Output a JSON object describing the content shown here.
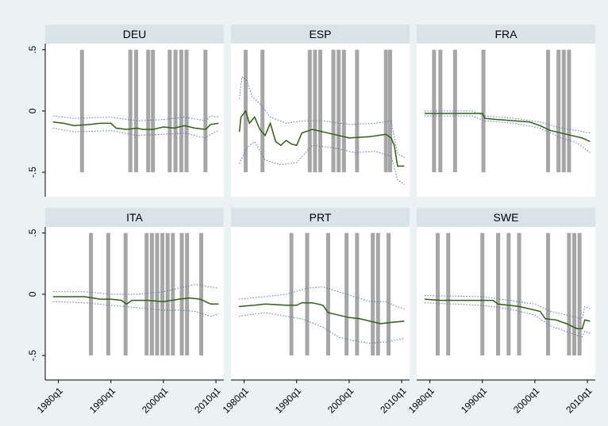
{
  "chart_data": {
    "type": "line",
    "layout": "3x2 small multiples",
    "x_ticks": [
      "1980q1",
      "1990q1",
      "2000q1",
      "2010q1"
    ],
    "y_ticks": [
      ".5",
      "0",
      "-.5"
    ],
    "ylim": [
      -0.7,
      0.55
    ],
    "xlim": [
      1977.5,
      2011.5
    ],
    "colors": {
      "estimate": "#2f5f18",
      "band": "#5b74b8",
      "shade": "#a6a6a6",
      "strip": "#d9e4e9",
      "background": "#eaf2f3"
    },
    "panels": [
      {
        "name": "DEU",
        "shaded_periods": [
          1984.5,
          1993.7,
          1994.8,
          1997.1,
          1998.0,
          2001.2,
          2002.3,
          2003.4,
          2004.4,
          2008.0
        ],
        "estimate": [
          [
            1979.0,
            -0.09
          ],
          [
            1981.0,
            -0.1
          ],
          [
            1983.0,
            -0.12
          ],
          [
            1986.0,
            -0.11
          ],
          [
            1988.0,
            -0.1
          ],
          [
            1990.0,
            -0.1
          ],
          [
            1991.0,
            -0.14
          ],
          [
            1993.0,
            -0.15
          ],
          [
            1995.0,
            -0.14
          ],
          [
            1996.0,
            -0.15
          ],
          [
            1998.0,
            -0.15
          ],
          [
            2000.0,
            -0.13
          ],
          [
            2002.0,
            -0.14
          ],
          [
            2004.0,
            -0.12
          ],
          [
            2006.0,
            -0.14
          ],
          [
            2008.0,
            -0.15
          ],
          [
            2009.0,
            -0.11
          ],
          [
            2010.5,
            -0.1
          ]
        ],
        "upper": [
          [
            1979.0,
            -0.04
          ],
          [
            1983.0,
            -0.06
          ],
          [
            1990.0,
            -0.05
          ],
          [
            1995.0,
            -0.08
          ],
          [
            2000.0,
            -0.07
          ],
          [
            2004.0,
            -0.05
          ],
          [
            2008.0,
            -0.08
          ],
          [
            2009.0,
            -0.04
          ],
          [
            2010.5,
            -0.05
          ]
        ],
        "lower": [
          [
            1979.0,
            -0.14
          ],
          [
            1983.0,
            -0.17
          ],
          [
            1990.0,
            -0.16
          ],
          [
            1995.0,
            -0.2
          ],
          [
            2000.0,
            -0.19
          ],
          [
            2004.0,
            -0.18
          ],
          [
            2008.0,
            -0.22
          ],
          [
            2009.0,
            -0.19
          ],
          [
            2010.5,
            -0.16
          ]
        ]
      },
      {
        "name": "ESP",
        "shaded_periods": [
          1980.3,
          1983.5,
          1992.5,
          1993.5,
          1994.5,
          1997.0,
          1998.0,
          1999.0,
          2001.5,
          2007.0,
          2007.8
        ],
        "estimate": [
          [
            1979.1,
            -0.17
          ],
          [
            1979.4,
            -0.05
          ],
          [
            1980.3,
            0.0
          ],
          [
            1981.0,
            -0.1
          ],
          [
            1982.0,
            -0.05
          ],
          [
            1983.0,
            -0.15
          ],
          [
            1984.0,
            -0.2
          ],
          [
            1985.0,
            -0.1
          ],
          [
            1986.0,
            -0.25
          ],
          [
            1987.0,
            -0.28
          ],
          [
            1988.0,
            -0.24
          ],
          [
            1989.0,
            -0.27
          ],
          [
            1990.0,
            -0.28
          ],
          [
            1991.0,
            -0.18
          ],
          [
            1993.0,
            -0.15
          ],
          [
            1996.0,
            -0.18
          ],
          [
            2000.0,
            -0.22
          ],
          [
            2004.0,
            -0.21
          ],
          [
            2007.0,
            -0.19
          ],
          [
            2008.0,
            -0.22
          ],
          [
            2008.6,
            -0.28
          ],
          [
            2009.2,
            -0.45
          ],
          [
            2010.5,
            -0.45
          ]
        ],
        "upper": [
          [
            1979.1,
            0.1
          ],
          [
            1979.6,
            0.28
          ],
          [
            1980.5,
            0.25
          ],
          [
            1981.5,
            0.12
          ],
          [
            1983.0,
            0.06
          ],
          [
            1985.0,
            -0.05
          ],
          [
            1988.0,
            -0.1
          ],
          [
            1991.0,
            -0.08
          ],
          [
            1995.0,
            -0.08
          ],
          [
            2000.0,
            -0.11
          ],
          [
            2005.0,
            -0.1
          ],
          [
            2008.0,
            -0.08
          ],
          [
            2009.2,
            -0.35
          ],
          [
            2010.5,
            -0.38
          ]
        ],
        "lower": [
          [
            1979.1,
            -0.43
          ],
          [
            1980.5,
            -0.3
          ],
          [
            1982.0,
            -0.25
          ],
          [
            1984.0,
            -0.4
          ],
          [
            1987.0,
            -0.44
          ],
          [
            1990.0,
            -0.42
          ],
          [
            1993.0,
            -0.28
          ],
          [
            1997.0,
            -0.3
          ],
          [
            2001.0,
            -0.34
          ],
          [
            2005.0,
            -0.33
          ],
          [
            2008.0,
            -0.37
          ],
          [
            2009.2,
            -0.56
          ],
          [
            2010.5,
            -0.6
          ]
        ]
      },
      {
        "name": "FRA",
        "shaded_periods": [
          1980.8,
          1982.0,
          1984.8,
          1990.2,
          2002.5,
          2004.5,
          2005.5,
          2006.5
        ],
        "estimate": [
          [
            1979.0,
            -0.02
          ],
          [
            1984.0,
            -0.02
          ],
          [
            1988.0,
            -0.02
          ],
          [
            1990.0,
            -0.02
          ],
          [
            1990.5,
            -0.06
          ],
          [
            1993.0,
            -0.07
          ],
          [
            1996.0,
            -0.08
          ],
          [
            1999.0,
            -0.09
          ],
          [
            2001.0,
            -0.12
          ],
          [
            2003.0,
            -0.16
          ],
          [
            2005.0,
            -0.18
          ],
          [
            2007.0,
            -0.2
          ],
          [
            2009.0,
            -0.22
          ],
          [
            2010.5,
            -0.25
          ]
        ],
        "upper": [
          [
            1979.0,
            0.0
          ],
          [
            1988.0,
            0.0
          ],
          [
            1990.5,
            -0.04
          ],
          [
            1996.0,
            -0.06
          ],
          [
            2001.0,
            -0.09
          ],
          [
            2005.0,
            -0.14
          ],
          [
            2008.0,
            -0.16
          ],
          [
            2010.5,
            -0.18
          ]
        ],
        "lower": [
          [
            1979.0,
            -0.04
          ],
          [
            1988.0,
            -0.04
          ],
          [
            1990.5,
            -0.08
          ],
          [
            1996.0,
            -0.1
          ],
          [
            2001.0,
            -0.14
          ],
          [
            2005.0,
            -0.22
          ],
          [
            2008.0,
            -0.26
          ],
          [
            2010.5,
            -0.34
          ]
        ]
      },
      {
        "name": "ITA",
        "shaded_periods": [
          1986.2,
          1989.5,
          1992.8,
          1996.8,
          1997.8,
          1998.8,
          1999.8,
          2000.8,
          2001.8,
          2003.5,
          2004.5,
          2007.2
        ],
        "estimate": [
          [
            1979.0,
            -0.02
          ],
          [
            1985.0,
            -0.02
          ],
          [
            1988.0,
            -0.04
          ],
          [
            1990.0,
            -0.04
          ],
          [
            1992.0,
            -0.05
          ],
          [
            1993.0,
            -0.08
          ],
          [
            1994.0,
            -0.05
          ],
          [
            1997.0,
            -0.05
          ],
          [
            2000.0,
            -0.06
          ],
          [
            2003.0,
            -0.04
          ],
          [
            2005.0,
            -0.03
          ],
          [
            2007.0,
            -0.04
          ],
          [
            2009.0,
            -0.08
          ],
          [
            2010.5,
            -0.08
          ]
        ],
        "upper": [
          [
            1979.0,
            0.02
          ],
          [
            1985.0,
            0.02
          ],
          [
            1990.0,
            0.0
          ],
          [
            1995.0,
            0.0
          ],
          [
            2000.0,
            0.02
          ],
          [
            2003.0,
            0.05
          ],
          [
            2006.0,
            0.08
          ],
          [
            2009.0,
            0.06
          ],
          [
            2010.5,
            0.05
          ]
        ],
        "lower": [
          [
            1979.0,
            -0.06
          ],
          [
            1985.0,
            -0.07
          ],
          [
            1990.0,
            -0.09
          ],
          [
            1995.0,
            -0.11
          ],
          [
            2000.0,
            -0.13
          ],
          [
            2003.0,
            -0.13
          ],
          [
            2006.0,
            -0.14
          ],
          [
            2009.0,
            -0.18
          ],
          [
            2010.5,
            -0.16
          ]
        ]
      },
      {
        "name": "PRT",
        "shaded_periods": [
          1989.0,
          1992.0,
          1996.0,
          1999.5,
          2001.5,
          2004.5,
          2005.5,
          2007.5
        ],
        "estimate": [
          [
            1979.0,
            -0.1
          ],
          [
            1982.0,
            -0.09
          ],
          [
            1984.0,
            -0.08
          ],
          [
            1988.0,
            -0.09
          ],
          [
            1990.0,
            -0.09
          ],
          [
            1991.0,
            -0.07
          ],
          [
            1993.0,
            -0.07
          ],
          [
            1995.0,
            -0.09
          ],
          [
            1996.0,
            -0.15
          ],
          [
            1998.0,
            -0.17
          ],
          [
            2000.0,
            -0.19
          ],
          [
            2002.0,
            -0.2
          ],
          [
            2004.0,
            -0.22
          ],
          [
            2006.0,
            -0.24
          ],
          [
            2008.0,
            -0.23
          ],
          [
            2010.5,
            -0.22
          ]
        ],
        "upper": [
          [
            1979.0,
            -0.04
          ],
          [
            1984.0,
            -0.02
          ],
          [
            1988.0,
            0.0
          ],
          [
            1992.0,
            0.05
          ],
          [
            1995.0,
            0.06
          ],
          [
            1998.0,
            0.02
          ],
          [
            2001.0,
            -0.02
          ],
          [
            2004.0,
            -0.06
          ],
          [
            2007.0,
            -0.06
          ],
          [
            2009.0,
            -0.1
          ],
          [
            2010.5,
            -0.12
          ]
        ],
        "lower": [
          [
            1979.0,
            -0.18
          ],
          [
            1984.0,
            -0.15
          ],
          [
            1988.0,
            -0.18
          ],
          [
            1991.0,
            -0.2
          ],
          [
            1995.0,
            -0.27
          ],
          [
            1998.0,
            -0.35
          ],
          [
            2001.0,
            -0.38
          ],
          [
            2004.0,
            -0.4
          ],
          [
            2007.0,
            -0.39
          ],
          [
            2010.5,
            -0.36
          ]
        ]
      },
      {
        "name": "SWE",
        "shaded_periods": [
          1981.5,
          1983.5,
          1990.0,
          1993.0,
          1995.0,
          1997.0,
          2002.5,
          2006.5,
          2007.5,
          2008.5
        ],
        "estimate": [
          [
            1979.0,
            -0.04
          ],
          [
            1982.0,
            -0.05
          ],
          [
            1986.0,
            -0.05
          ],
          [
            1990.0,
            -0.05
          ],
          [
            1992.0,
            -0.05
          ],
          [
            1993.0,
            -0.08
          ],
          [
            1997.0,
            -0.1
          ],
          [
            1999.0,
            -0.12
          ],
          [
            2001.0,
            -0.14
          ],
          [
            2002.0,
            -0.2
          ],
          [
            2004.0,
            -0.21
          ],
          [
            2006.0,
            -0.24
          ],
          [
            2008.0,
            -0.28
          ],
          [
            2009.0,
            -0.28
          ],
          [
            2009.5,
            -0.21
          ],
          [
            2010.5,
            -0.22
          ]
        ],
        "upper": [
          [
            1979.0,
            -0.01
          ],
          [
            1990.0,
            -0.02
          ],
          [
            1995.0,
            -0.05
          ],
          [
            2000.0,
            -0.08
          ],
          [
            2003.0,
            -0.14
          ],
          [
            2007.0,
            -0.18
          ],
          [
            2009.0,
            -0.2
          ],
          [
            2009.5,
            -0.1
          ],
          [
            2010.5,
            -0.12
          ]
        ],
        "lower": [
          [
            1979.0,
            -0.07
          ],
          [
            1990.0,
            -0.09
          ],
          [
            1995.0,
            -0.12
          ],
          [
            2000.0,
            -0.17
          ],
          [
            2003.0,
            -0.26
          ],
          [
            2007.0,
            -0.32
          ],
          [
            2009.0,
            -0.35
          ],
          [
            2009.5,
            -0.3
          ],
          [
            2010.5,
            -0.32
          ]
        ]
      }
    ]
  }
}
